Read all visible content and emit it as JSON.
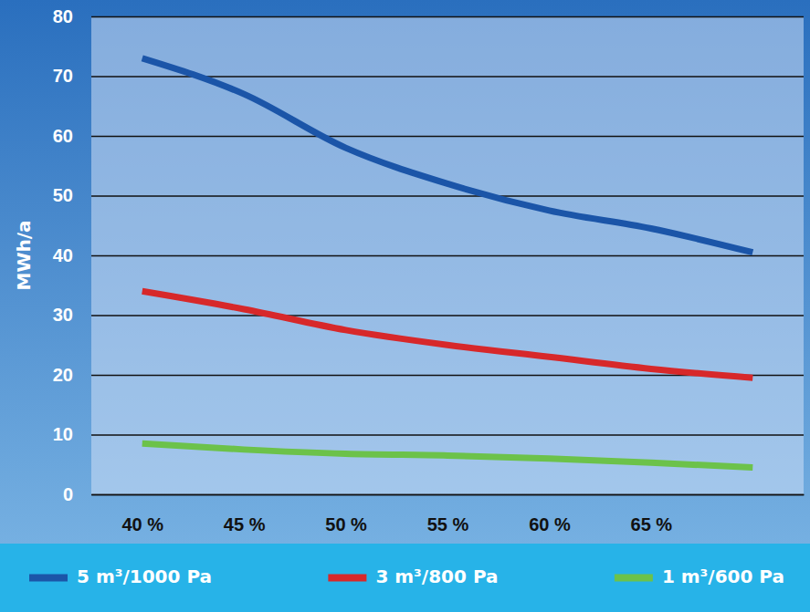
{
  "chart_data": {
    "type": "line",
    "y_label": "MWh/a",
    "x": [
      40,
      45,
      50,
      55,
      60,
      65,
      70
    ],
    "xlim": [
      37.5,
      72.5
    ],
    "xticks": [
      {
        "value": 40,
        "label": "40 %"
      },
      {
        "value": 45,
        "label": "45 %"
      },
      {
        "value": 50,
        "label": "50 %"
      },
      {
        "value": 55,
        "label": "55 %"
      },
      {
        "value": 60,
        "label": "60 %"
      },
      {
        "value": 65,
        "label": "65 %"
      }
    ],
    "ylim": [
      0,
      80
    ],
    "yticks": [
      0,
      10,
      20,
      30,
      40,
      50,
      60,
      70,
      80
    ],
    "grid": true,
    "legend": "bottom",
    "series": [
      {
        "name": "5 m³/1000 Pa",
        "color": "#1b55a8",
        "values": [
          73,
          67,
          58,
          52,
          47.5,
          44.5,
          40.5
        ]
      },
      {
        "name": "3 m³/800 Pa",
        "color": "#d7282a",
        "values": [
          34,
          31,
          27.5,
          25,
          23,
          21,
          19.5
        ]
      },
      {
        "name": "1 m³/600 Pa",
        "color": "#6cc24a",
        "values": [
          8.5,
          7.5,
          6.8,
          6.5,
          6,
          5.3,
          4.5
        ]
      }
    ]
  }
}
